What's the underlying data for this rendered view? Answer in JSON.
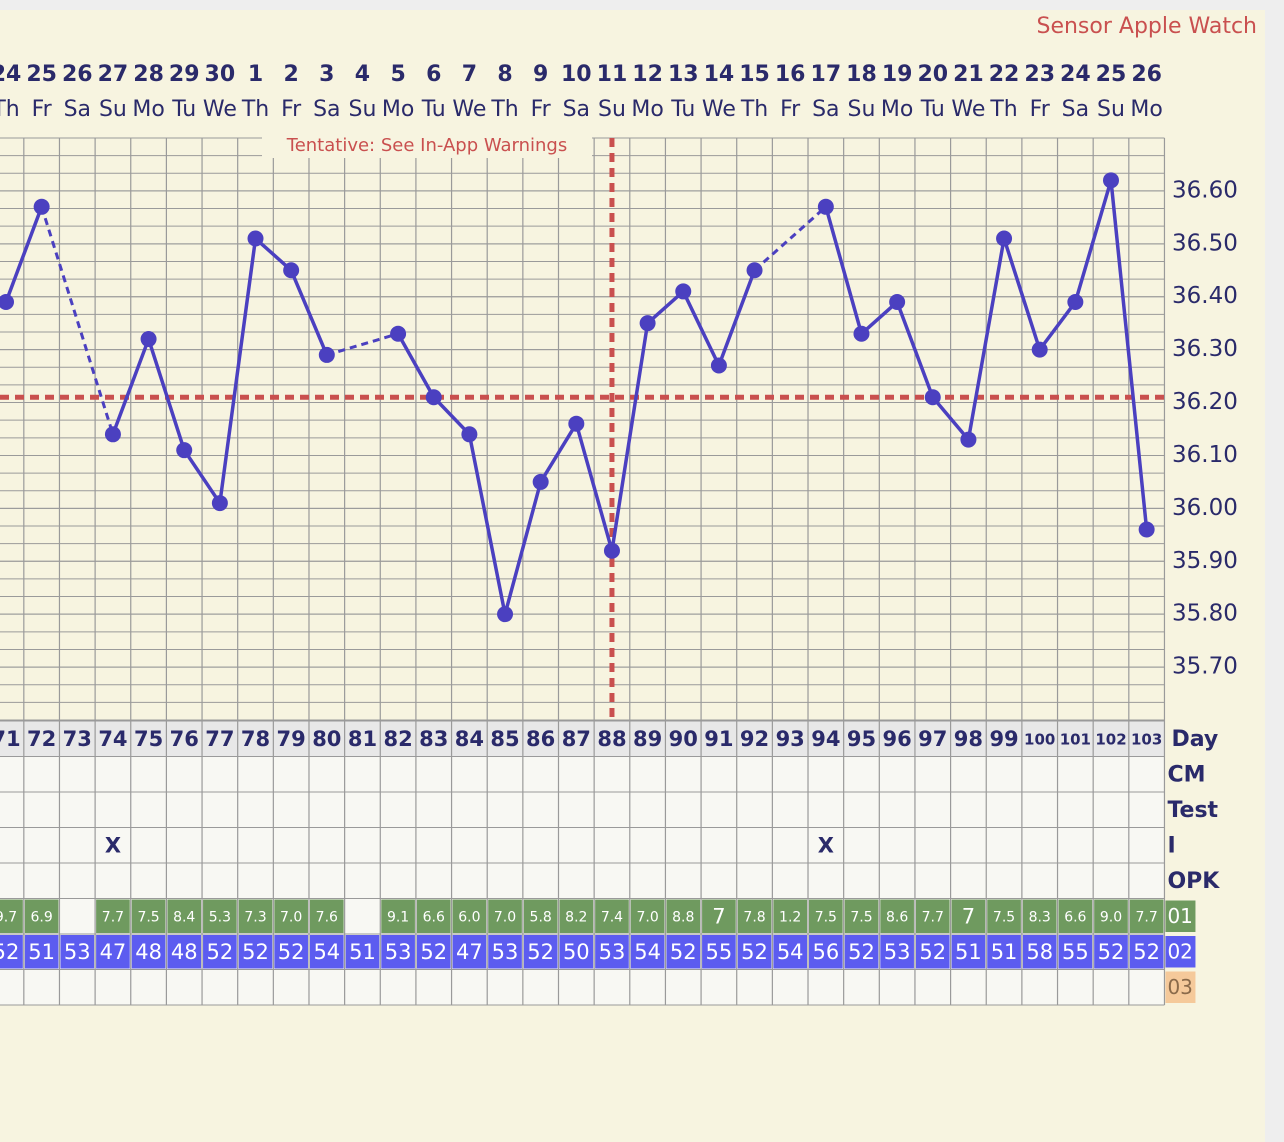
{
  "chart_data": {
    "type": "line",
    "source": "Sensor Apple Watch",
    "annotation": "Tentative: See In-App Warnings",
    "dates": [
      24,
      25,
      26,
      27,
      28,
      29,
      30,
      1,
      2,
      3,
      4,
      5,
      6,
      7,
      8,
      9,
      10,
      11,
      12,
      13,
      14,
      15,
      16,
      17,
      18,
      19,
      20,
      21,
      22,
      23,
      24,
      25,
      26
    ],
    "weekdays": [
      "Th",
      "Fr",
      "Sa",
      "Su",
      "Mo",
      "Tu",
      "We",
      "Th",
      "Fr",
      "Sa",
      "Su",
      "Mo",
      "Tu",
      "We",
      "Th",
      "Fr",
      "Sa",
      "Su",
      "Mo",
      "Tu",
      "We",
      "Th",
      "Fr",
      "Sa",
      "Su",
      "Mo",
      "Tu",
      "We",
      "Th",
      "Fr",
      "Sa",
      "Su",
      "Mo"
    ],
    "day_label": "Day",
    "days": [
      71,
      72,
      73,
      74,
      75,
      76,
      77,
      78,
      79,
      80,
      81,
      82,
      83,
      84,
      85,
      86,
      87,
      88,
      89,
      90,
      91,
      92,
      93,
      94,
      95,
      96,
      97,
      98,
      99,
      100,
      101,
      102,
      103
    ],
    "values": [
      36.39,
      36.57,
      null,
      36.14,
      36.32,
      36.11,
      36.01,
      36.51,
      36.45,
      36.29,
      null,
      36.33,
      36.21,
      36.14,
      35.8,
      36.05,
      36.16,
      35.92,
      36.35,
      36.41,
      36.27,
      36.45,
      null,
      36.57,
      36.33,
      36.39,
      36.21,
      36.13,
      36.51,
      36.3,
      36.39,
      36.62,
      35.96
    ],
    "color": "#4b40c0",
    "coverline": 36.21,
    "ovulation_day": 88,
    "marker_color": "#c9504f",
    "ylim": [
      35.6,
      36.7
    ],
    "yticks": [
      {
        "value": 35.7,
        "label": "35.70"
      },
      {
        "value": 35.8,
        "label": "35.80"
      },
      {
        "value": 35.9,
        "label": "35.90"
      },
      {
        "value": 36.0,
        "label": "36.00"
      },
      {
        "value": 36.1,
        "label": "36.10"
      },
      {
        "value": 36.2,
        "label": "36.20"
      },
      {
        "value": 36.3,
        "label": "36.30"
      },
      {
        "value": 36.4,
        "label": "36.40"
      },
      {
        "value": 36.5,
        "label": "36.50"
      },
      {
        "value": 36.6,
        "label": "36.60"
      }
    ],
    "grid": true,
    "rows": [
      {
        "label": "CM"
      },
      {
        "label": "Test"
      },
      {
        "label": "I",
        "cells": [
          null,
          null,
          null,
          "X",
          null,
          null,
          null,
          null,
          null,
          null,
          null,
          null,
          null,
          null,
          null,
          null,
          null,
          null,
          null,
          null,
          null,
          null,
          null,
          "X",
          null,
          null,
          null,
          null,
          null,
          null,
          null,
          null,
          null
        ]
      },
      {
        "label": "OPK"
      },
      {
        "label": "01",
        "color": "#6f9a5f",
        "cells": [
          "9.7",
          "6.9",
          null,
          "7.7",
          "7.5",
          "8.4",
          "5.3",
          "7.3",
          "7.0",
          "7.6",
          null,
          "9.1",
          "6.6",
          "6.0",
          "7.0",
          "5.8",
          "8.2",
          "7.4",
          "7.0",
          "8.8",
          "7",
          "7.8",
          "1.2",
          "7.5",
          "7.5",
          "8.6",
          "7.7",
          "7",
          "7.5",
          "8.3",
          "6.6",
          "9.0",
          "7.7"
        ]
      },
      {
        "label": "02",
        "color": "#5c5cf0",
        "cells": [
          52,
          51,
          53,
          47,
          48,
          48,
          52,
          52,
          52,
          54,
          51,
          53,
          52,
          47,
          53,
          52,
          50,
          53,
          54,
          52,
          55,
          52,
          54,
          56,
          52,
          53,
          52,
          51,
          51,
          58,
          55,
          52,
          52
        ]
      },
      {
        "label": "03",
        "color": "#f5c99a"
      }
    ]
  }
}
